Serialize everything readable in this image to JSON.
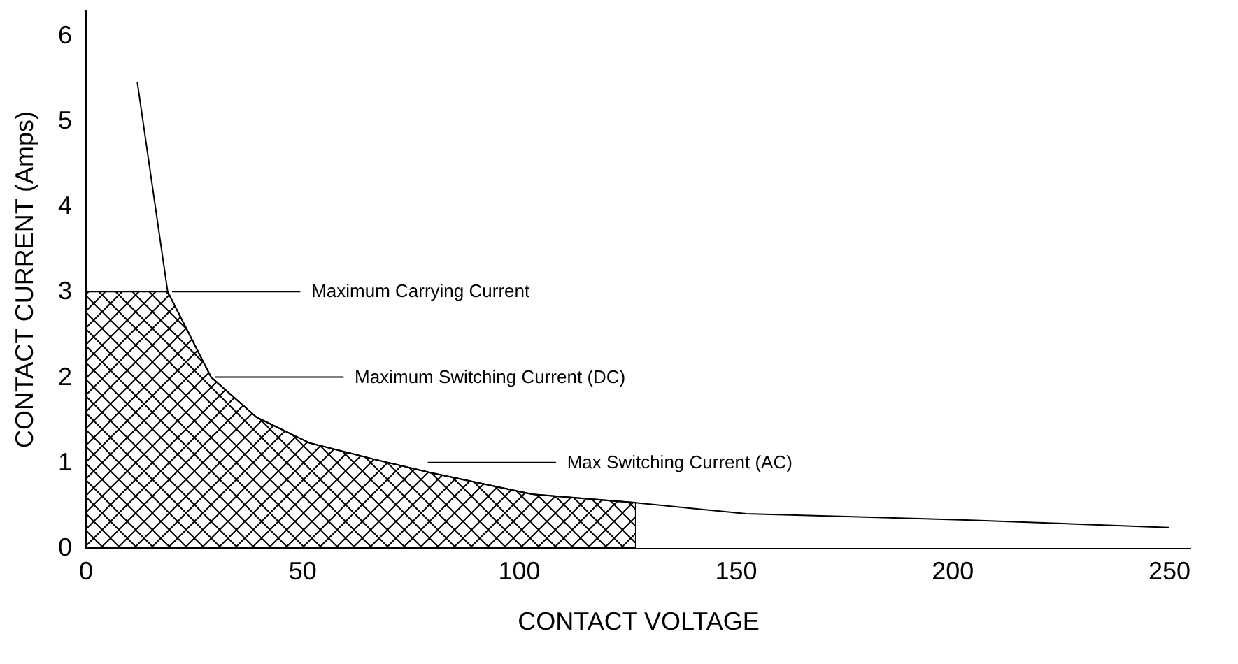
{
  "chart_data": {
    "type": "line",
    "xlabel": "CONTACT VOLTAGE",
    "ylabel": "CONTACT CURRENT (Amps)",
    "series": [
      {
        "type": "area",
        "color": "#000000",
        "x": [
          0,
          19,
          29,
          39.5,
          51.7,
          66.5,
          79.8,
          103,
          127
        ],
        "values": [
          3,
          3,
          2,
          1.53,
          1.23,
          1.04,
          0.88,
          0.63,
          0.53
        ]
      },
      {
        "color": "#000000",
        "x": [
          12,
          19,
          29,
          39.5,
          51.7,
          66.5,
          79.8,
          103,
          127,
          152.5,
          202,
          250
        ],
        "values": [
          5.45,
          3,
          2,
          1.53,
          1.23,
          1.04,
          0.88,
          0.63,
          0.53,
          0.4,
          0.33,
          0.24
        ]
      }
    ],
    "annotations": [
      {
        "text": "Maximum Carrying Current",
        "x": 19,
        "y": 3
      },
      {
        "text": "Maximum Switching Current (DC)",
        "x": 29,
        "y": 2
      },
      {
        "text": "Max Switching Current (AC)",
        "x": 78,
        "y": 1
      }
    ],
    "xlim": [
      0,
      255
    ],
    "xticks": [
      0,
      50,
      100,
      150,
      200,
      250
    ],
    "ylim": [
      0,
      6.3
    ],
    "yticks": [
      0,
      1,
      2,
      3,
      4,
      5,
      6
    ]
  }
}
